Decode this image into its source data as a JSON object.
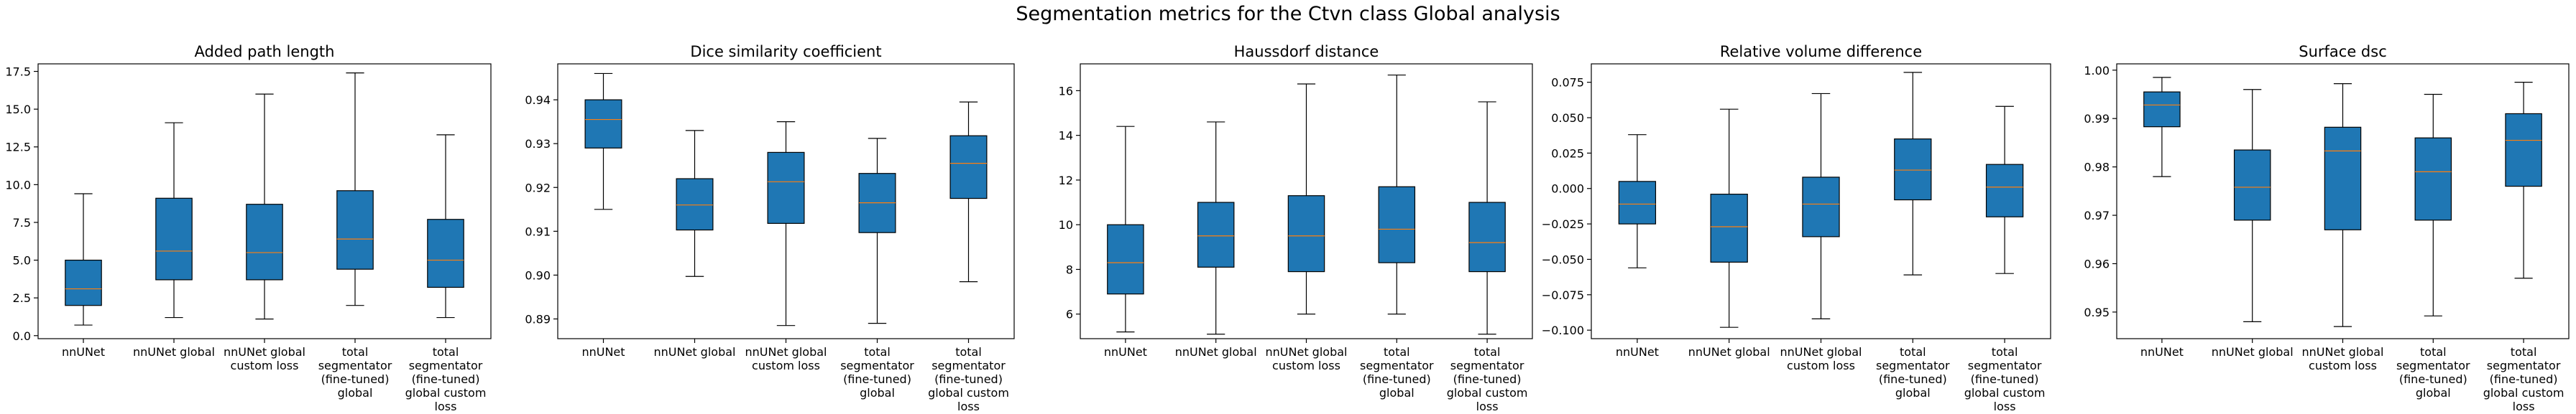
{
  "suptitle": "Segmentation metrics for the Ctvn class Global analysis",
  "categories": [
    [
      "nnUNet"
    ],
    [
      "nnUNet global"
    ],
    [
      "nnUNet global",
      "custom loss"
    ],
    [
      "total",
      "segmentator",
      "(fine-tuned)",
      "global"
    ],
    [
      "total",
      "segmentator",
      "(fine-tuned)",
      "global custom",
      "loss"
    ]
  ],
  "colors": {
    "box_fill": "#1f77b4",
    "median": "#ff7f0e",
    "line": "#000000"
  },
  "chart_data": [
    {
      "type": "box",
      "title": "Added path length",
      "ylim": [
        -0.2,
        18.0
      ],
      "yticks": [
        0.0,
        2.5,
        5.0,
        7.5,
        10.0,
        12.5,
        15.0,
        17.5
      ],
      "ytick_labels": [
        "0.0",
        "2.5",
        "5.0",
        "7.5",
        "10.0",
        "12.5",
        "15.0",
        "17.5"
      ],
      "boxes": [
        {
          "whislo": 0.7,
          "q1": 2.0,
          "med": 3.1,
          "q3": 5.0,
          "whishi": 9.4
        },
        {
          "whislo": 1.2,
          "q1": 3.7,
          "med": 5.6,
          "q3": 9.1,
          "whishi": 14.1
        },
        {
          "whislo": 1.1,
          "q1": 3.7,
          "med": 5.5,
          "q3": 8.7,
          "whishi": 16.0
        },
        {
          "whislo": 2.0,
          "q1": 4.4,
          "med": 6.4,
          "q3": 9.6,
          "whishi": 17.4
        },
        {
          "whislo": 1.2,
          "q1": 3.2,
          "med": 5.0,
          "q3": 7.7,
          "whishi": 13.3
        }
      ]
    },
    {
      "type": "box",
      "title": "Dice similarity coefficient",
      "ylim": [
        0.8855,
        0.9482
      ],
      "yticks": [
        0.89,
        0.9,
        0.91,
        0.92,
        0.93,
        0.94
      ],
      "ytick_labels": [
        "0.89",
        "0.90",
        "0.91",
        "0.92",
        "0.93",
        "0.94"
      ],
      "boxes": [
        {
          "whislo": 0.915,
          "q1": 0.929,
          "med": 0.9355,
          "q3": 0.94,
          "whishi": 0.946
        },
        {
          "whislo": 0.8997,
          "q1": 0.9103,
          "med": 0.916,
          "q3": 0.922,
          "whishi": 0.933
        },
        {
          "whislo": 0.8885,
          "q1": 0.9118,
          "med": 0.9213,
          "q3": 0.928,
          "whishi": 0.935
        },
        {
          "whislo": 0.889,
          "q1": 0.9097,
          "med": 0.9165,
          "q3": 0.9232,
          "whishi": 0.9312
        },
        {
          "whislo": 0.8985,
          "q1": 0.9175,
          "med": 0.9255,
          "q3": 0.9318,
          "whishi": 0.9395
        }
      ]
    },
    {
      "type": "box",
      "title": "Haussdorf distance",
      "ylim": [
        4.9,
        17.2
      ],
      "yticks": [
        6,
        8,
        10,
        12,
        14,
        16
      ],
      "ytick_labels": [
        "6",
        "8",
        "10",
        "12",
        "14",
        "16"
      ],
      "boxes": [
        {
          "whislo": 5.2,
          "q1": 6.9,
          "med": 8.3,
          "q3": 10.0,
          "whishi": 14.4
        },
        {
          "whislo": 5.1,
          "q1": 8.1,
          "med": 9.5,
          "q3": 11.0,
          "whishi": 14.6
        },
        {
          "whislo": 6.0,
          "q1": 7.9,
          "med": 9.5,
          "q3": 11.3,
          "whishi": 16.3
        },
        {
          "whislo": 6.0,
          "q1": 8.3,
          "med": 9.8,
          "q3": 11.7,
          "whishi": 16.7
        },
        {
          "whislo": 5.1,
          "q1": 7.9,
          "med": 9.2,
          "q3": 11.0,
          "whishi": 15.5
        }
      ]
    },
    {
      "type": "box",
      "title": "Relative volume difference",
      "ylim": [
        -0.106,
        0.088
      ],
      "yticks": [
        -0.1,
        -0.075,
        -0.05,
        -0.025,
        0.0,
        0.025,
        0.05,
        0.075
      ],
      "ytick_labels": [
        "−0.100",
        "−0.075",
        "−0.050",
        "−0.025",
        "0.000",
        "0.025",
        "0.050",
        "0.075"
      ],
      "boxes": [
        {
          "whislo": -0.056,
          "q1": -0.025,
          "med": -0.011,
          "q3": 0.005,
          "whishi": 0.038
        },
        {
          "whislo": -0.098,
          "q1": -0.052,
          "med": -0.027,
          "q3": -0.004,
          "whishi": 0.056
        },
        {
          "whislo": -0.092,
          "q1": -0.034,
          "med": -0.011,
          "q3": 0.008,
          "whishi": 0.067
        },
        {
          "whislo": -0.061,
          "q1": -0.008,
          "med": 0.013,
          "q3": 0.035,
          "whishi": 0.082
        },
        {
          "whislo": -0.06,
          "q1": -0.02,
          "med": 0.001,
          "q3": 0.017,
          "whishi": 0.058
        }
      ]
    },
    {
      "type": "box",
      "title": "Surface dsc",
      "ylim": [
        0.9445,
        1.0013
      ],
      "yticks": [
        0.95,
        0.96,
        0.97,
        0.98,
        0.99,
        1.0
      ],
      "ytick_labels": [
        "0.95",
        "0.96",
        "0.97",
        "0.98",
        "0.99",
        "1.00"
      ],
      "boxes": [
        {
          "whislo": 0.978,
          "q1": 0.9883,
          "med": 0.9928,
          "q3": 0.9955,
          "whishi": 0.9985
        },
        {
          "whislo": 0.948,
          "q1": 0.969,
          "med": 0.9758,
          "q3": 0.9835,
          "whishi": 0.996
        },
        {
          "whislo": 0.947,
          "q1": 0.967,
          "med": 0.9833,
          "q3": 0.9882,
          "whishi": 0.9972
        },
        {
          "whislo": 0.9492,
          "q1": 0.969,
          "med": 0.979,
          "q3": 0.986,
          "whishi": 0.995
        },
        {
          "whislo": 0.957,
          "q1": 0.976,
          "med": 0.9855,
          "q3": 0.991,
          "whishi": 0.9975
        }
      ]
    }
  ]
}
